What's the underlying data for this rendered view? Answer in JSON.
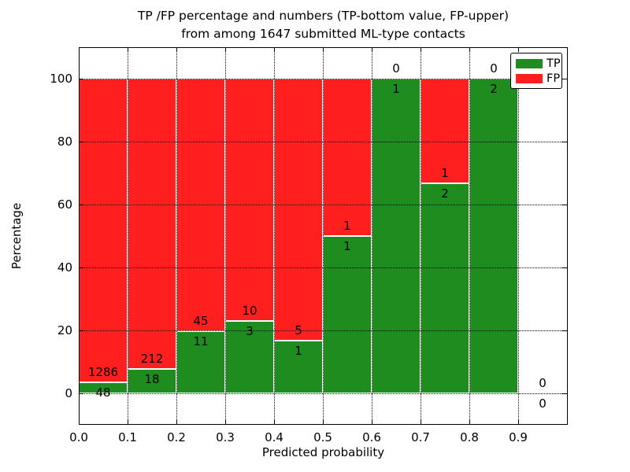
{
  "chart_data": {
    "type": "bar",
    "stacked": true,
    "normalized": "percent",
    "title_line1": "TP /FP percentage and numbers (TP-bottom value, FP-upper)",
    "title_line2": "from among 1647 submitted ML-type contacts",
    "total_contacts": 1647,
    "xlabel": "Predicted probability",
    "ylabel": "Percentage",
    "xlim": [
      0.0,
      1.0
    ],
    "ylim": [
      -10,
      110
    ],
    "xticks": {
      "values": [
        0.0,
        0.1,
        0.2,
        0.3,
        0.4,
        0.5,
        0.6,
        0.7,
        0.8,
        0.9,
        1.0
      ],
      "labels": [
        "0.0",
        "0.1",
        "0.2",
        "0.3",
        "0.4",
        "0.5",
        "0.6",
        "0.7",
        "0.8",
        "0.9",
        ""
      ]
    },
    "yticks": {
      "values": [
        0,
        20,
        40,
        60,
        80,
        100
      ],
      "labels": [
        "0",
        "20",
        "40",
        "60",
        "80",
        "100"
      ]
    },
    "grid": true,
    "legend": {
      "location": "upper right",
      "entries": [
        {
          "label": "TP",
          "color": "#1e8c1e"
        },
        {
          "label": "FP",
          "color": "#ff1f1f"
        }
      ]
    },
    "annotation_rule": "FP count above TP/FP boundary, TP count below boundary",
    "bins": [
      {
        "x0": 0.0,
        "x1": 0.1,
        "tp": 48,
        "fp": 1286
      },
      {
        "x0": 0.1,
        "x1": 0.2,
        "tp": 18,
        "fp": 212
      },
      {
        "x0": 0.2,
        "x1": 0.3,
        "tp": 11,
        "fp": 45
      },
      {
        "x0": 0.3,
        "x1": 0.4,
        "tp": 3,
        "fp": 10
      },
      {
        "x0": 0.4,
        "x1": 0.5,
        "tp": 1,
        "fp": 5
      },
      {
        "x0": 0.5,
        "x1": 0.6,
        "tp": 1,
        "fp": 1
      },
      {
        "x0": 0.6,
        "x1": 0.7,
        "tp": 1,
        "fp": 0
      },
      {
        "x0": 0.7,
        "x1": 0.8,
        "tp": 2,
        "fp": 1
      },
      {
        "x0": 0.8,
        "x1": 0.9,
        "tp": 2,
        "fp": 0
      },
      {
        "x0": 0.9,
        "x1": 1.0,
        "tp": 0,
        "fp": 0
      }
    ],
    "colors": {
      "tp": "#1e8c1e",
      "fp": "#ff1f1f",
      "bar_edge": "#ffffff",
      "grid": "#000000",
      "text": "#000000",
      "background": "#ffffff"
    }
  }
}
